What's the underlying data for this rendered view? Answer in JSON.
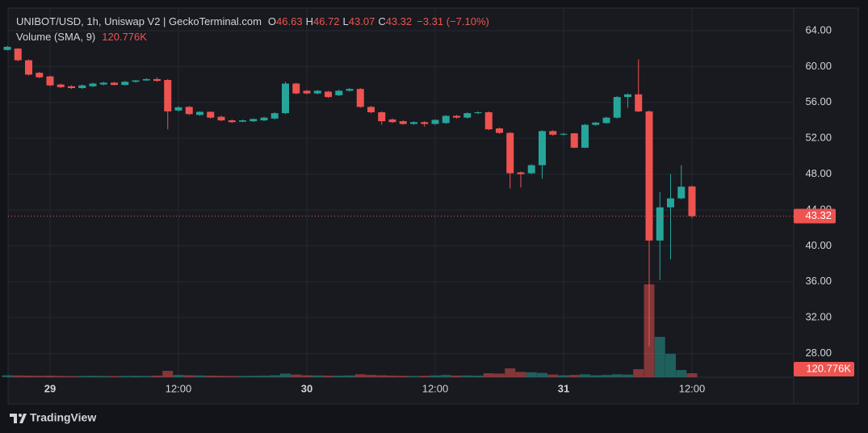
{
  "chart_data": {
    "type": "candlestick",
    "title": "UNIBOT/USD, 1h, Uniswap V2 | GeckoTerminal.com",
    "legend_labels": {
      "open": "O",
      "high": "H",
      "low": "L",
      "close": "C"
    },
    "change": "−3.31 (−7.10%)",
    "categories": [
      null,
      null,
      null,
      null,
      "29",
      null,
      null,
      null,
      null,
      null,
      null,
      null,
      null,
      null,
      null,
      null,
      "12:00",
      null,
      null,
      null,
      null,
      null,
      null,
      null,
      null,
      null,
      null,
      null,
      "30",
      null,
      null,
      null,
      null,
      null,
      null,
      null,
      null,
      null,
      null,
      null,
      "12:00",
      null,
      null,
      null,
      null,
      null,
      null,
      null,
      null,
      null,
      null,
      null,
      "31",
      null,
      null,
      null,
      null,
      null,
      null,
      null,
      null,
      null,
      null,
      null,
      "12:00"
    ],
    "open": [
      61.85,
      62.0,
      60.7,
      59.3,
      58.9,
      58.0,
      57.8,
      57.6,
      57.8,
      58.0,
      58.2,
      57.95,
      58.3,
      58.45,
      58.6,
      58.5,
      55.1,
      55.5,
      54.6,
      54.95,
      54.4,
      54.0,
      53.85,
      53.9,
      54.0,
      54.2,
      54.8,
      58.1,
      57.3,
      57.0,
      57.2,
      56.8,
      57.3,
      57.5,
      55.5,
      54.9,
      54.1,
      53.9,
      53.6,
      53.8,
      53.6,
      53.7,
      54.5,
      54.3,
      54.8,
      54.9,
      53.1,
      52.6,
      48.2,
      48.1,
      49.0,
      52.8,
      52.4,
      52.55,
      50.95,
      53.5,
      53.7,
      54.3,
      56.6,
      56.9,
      55.0,
      40.6,
      44.3,
      45.3,
      46.63
    ],
    "high": [
      62.3,
      62.05,
      60.8,
      59.4,
      59.0,
      58.1,
      57.9,
      58.0,
      58.2,
      58.3,
      58.3,
      58.4,
      58.5,
      58.7,
      58.8,
      58.6,
      55.6,
      55.6,
      55.0,
      55.0,
      54.5,
      54.1,
      54.1,
      54.2,
      54.4,
      54.9,
      58.3,
      58.2,
      57.4,
      57.4,
      57.3,
      57.4,
      57.6,
      57.6,
      55.6,
      55.0,
      54.2,
      54.0,
      53.9,
      53.9,
      54.1,
      54.6,
      54.6,
      54.9,
      55.0,
      55.0,
      53.2,
      52.7,
      48.3,
      49.1,
      52.9,
      52.9,
      52.6,
      52.6,
      53.6,
      53.8,
      54.4,
      56.7,
      57.0,
      60.8,
      55.1,
      46.0,
      48.0,
      49.0,
      46.72
    ],
    "low": [
      61.8,
      60.6,
      59.0,
      58.7,
      57.8,
      57.6,
      57.5,
      57.5,
      57.7,
      57.9,
      57.9,
      57.9,
      58.2,
      58.4,
      58.3,
      53.0,
      55.0,
      54.6,
      54.5,
      54.2,
      53.9,
      53.7,
      53.8,
      53.8,
      53.9,
      54.1,
      54.7,
      56.9,
      56.9,
      56.9,
      56.5,
      56.7,
      57.2,
      55.4,
      54.8,
      53.5,
      53.7,
      53.5,
      53.5,
      53.3,
      53.5,
      53.6,
      54.2,
      54.2,
      54.7,
      52.9,
      52.5,
      46.4,
      46.5,
      48.0,
      47.5,
      52.3,
      52.3,
      50.9,
      50.9,
      53.4,
      53.6,
      54.2,
      55.4,
      54.9,
      28.8,
      36.2,
      38.5,
      45.2,
      43.07
    ],
    "close": [
      62.2,
      60.7,
      59.1,
      58.8,
      57.9,
      57.7,
      57.6,
      57.9,
      58.1,
      58.2,
      57.95,
      58.3,
      58.45,
      58.6,
      58.4,
      55.0,
      55.45,
      54.7,
      54.95,
      54.3,
      54.0,
      53.8,
      54.0,
      54.15,
      54.3,
      54.8,
      58.1,
      57.0,
      57.0,
      57.3,
      56.6,
      57.3,
      57.5,
      55.5,
      54.9,
      53.9,
      53.8,
      53.6,
      53.8,
      53.6,
      54.05,
      54.5,
      54.3,
      54.8,
      54.9,
      53.0,
      52.6,
      48.1,
      48.0,
      49.0,
      52.8,
      52.4,
      52.5,
      50.95,
      53.5,
      53.75,
      54.3,
      56.6,
      56.9,
      55.0,
      40.6,
      44.3,
      45.3,
      46.6,
      43.32
    ],
    "volume": {
      "name": "Volume (SMA, 9)",
      "values": [
        60,
        55,
        50,
        45,
        50,
        40,
        35,
        40,
        45,
        40,
        35,
        40,
        45,
        40,
        50,
        193,
        70,
        60,
        55,
        50,
        45,
        40,
        40,
        45,
        50,
        60,
        110,
        80,
        60,
        55,
        50,
        50,
        55,
        90,
        70,
        60,
        50,
        45,
        40,
        45,
        55,
        70,
        50,
        55,
        50,
        121,
        110,
        266,
        160,
        150,
        130,
        80,
        60,
        70,
        90,
        60,
        70,
        90,
        80,
        242,
        2778,
        1208,
        700,
        217,
        120.776
      ],
      "value_labels": [
        null,
        null,
        null,
        null,
        null,
        null,
        null,
        null,
        null,
        null,
        null,
        null,
        null,
        null,
        null,
        null,
        null,
        null,
        null,
        null,
        null,
        null,
        null,
        null,
        null,
        null,
        null,
        null,
        null,
        null,
        null,
        null,
        null,
        null,
        null,
        null,
        null,
        null,
        null,
        null,
        null,
        null,
        null,
        null,
        null,
        null,
        null,
        null,
        null,
        null,
        null,
        null,
        null,
        null,
        null,
        null,
        null,
        null,
        null,
        null,
        null,
        null,
        null,
        null,
        "120.776K"
      ]
    },
    "ylim": [
      25.35,
      66.52
    ],
    "yticks": [
      {
        "value": 28,
        "label": "28.00"
      },
      {
        "value": 32,
        "label": "32.00"
      },
      {
        "value": 36,
        "label": "36.00"
      },
      {
        "value": 40,
        "label": "40.00"
      },
      {
        "value": 44,
        "label": "44.00"
      },
      {
        "value": 48,
        "label": "48.00"
      },
      {
        "value": 52,
        "label": "52.00"
      },
      {
        "value": 56,
        "label": "56.00"
      },
      {
        "value": 60,
        "label": "60.00"
      },
      {
        "value": 64,
        "label": "64.00"
      }
    ],
    "up_color": "#26a69a",
    "down_color": "#ef5350",
    "grid": true,
    "branding": "TradingView"
  }
}
